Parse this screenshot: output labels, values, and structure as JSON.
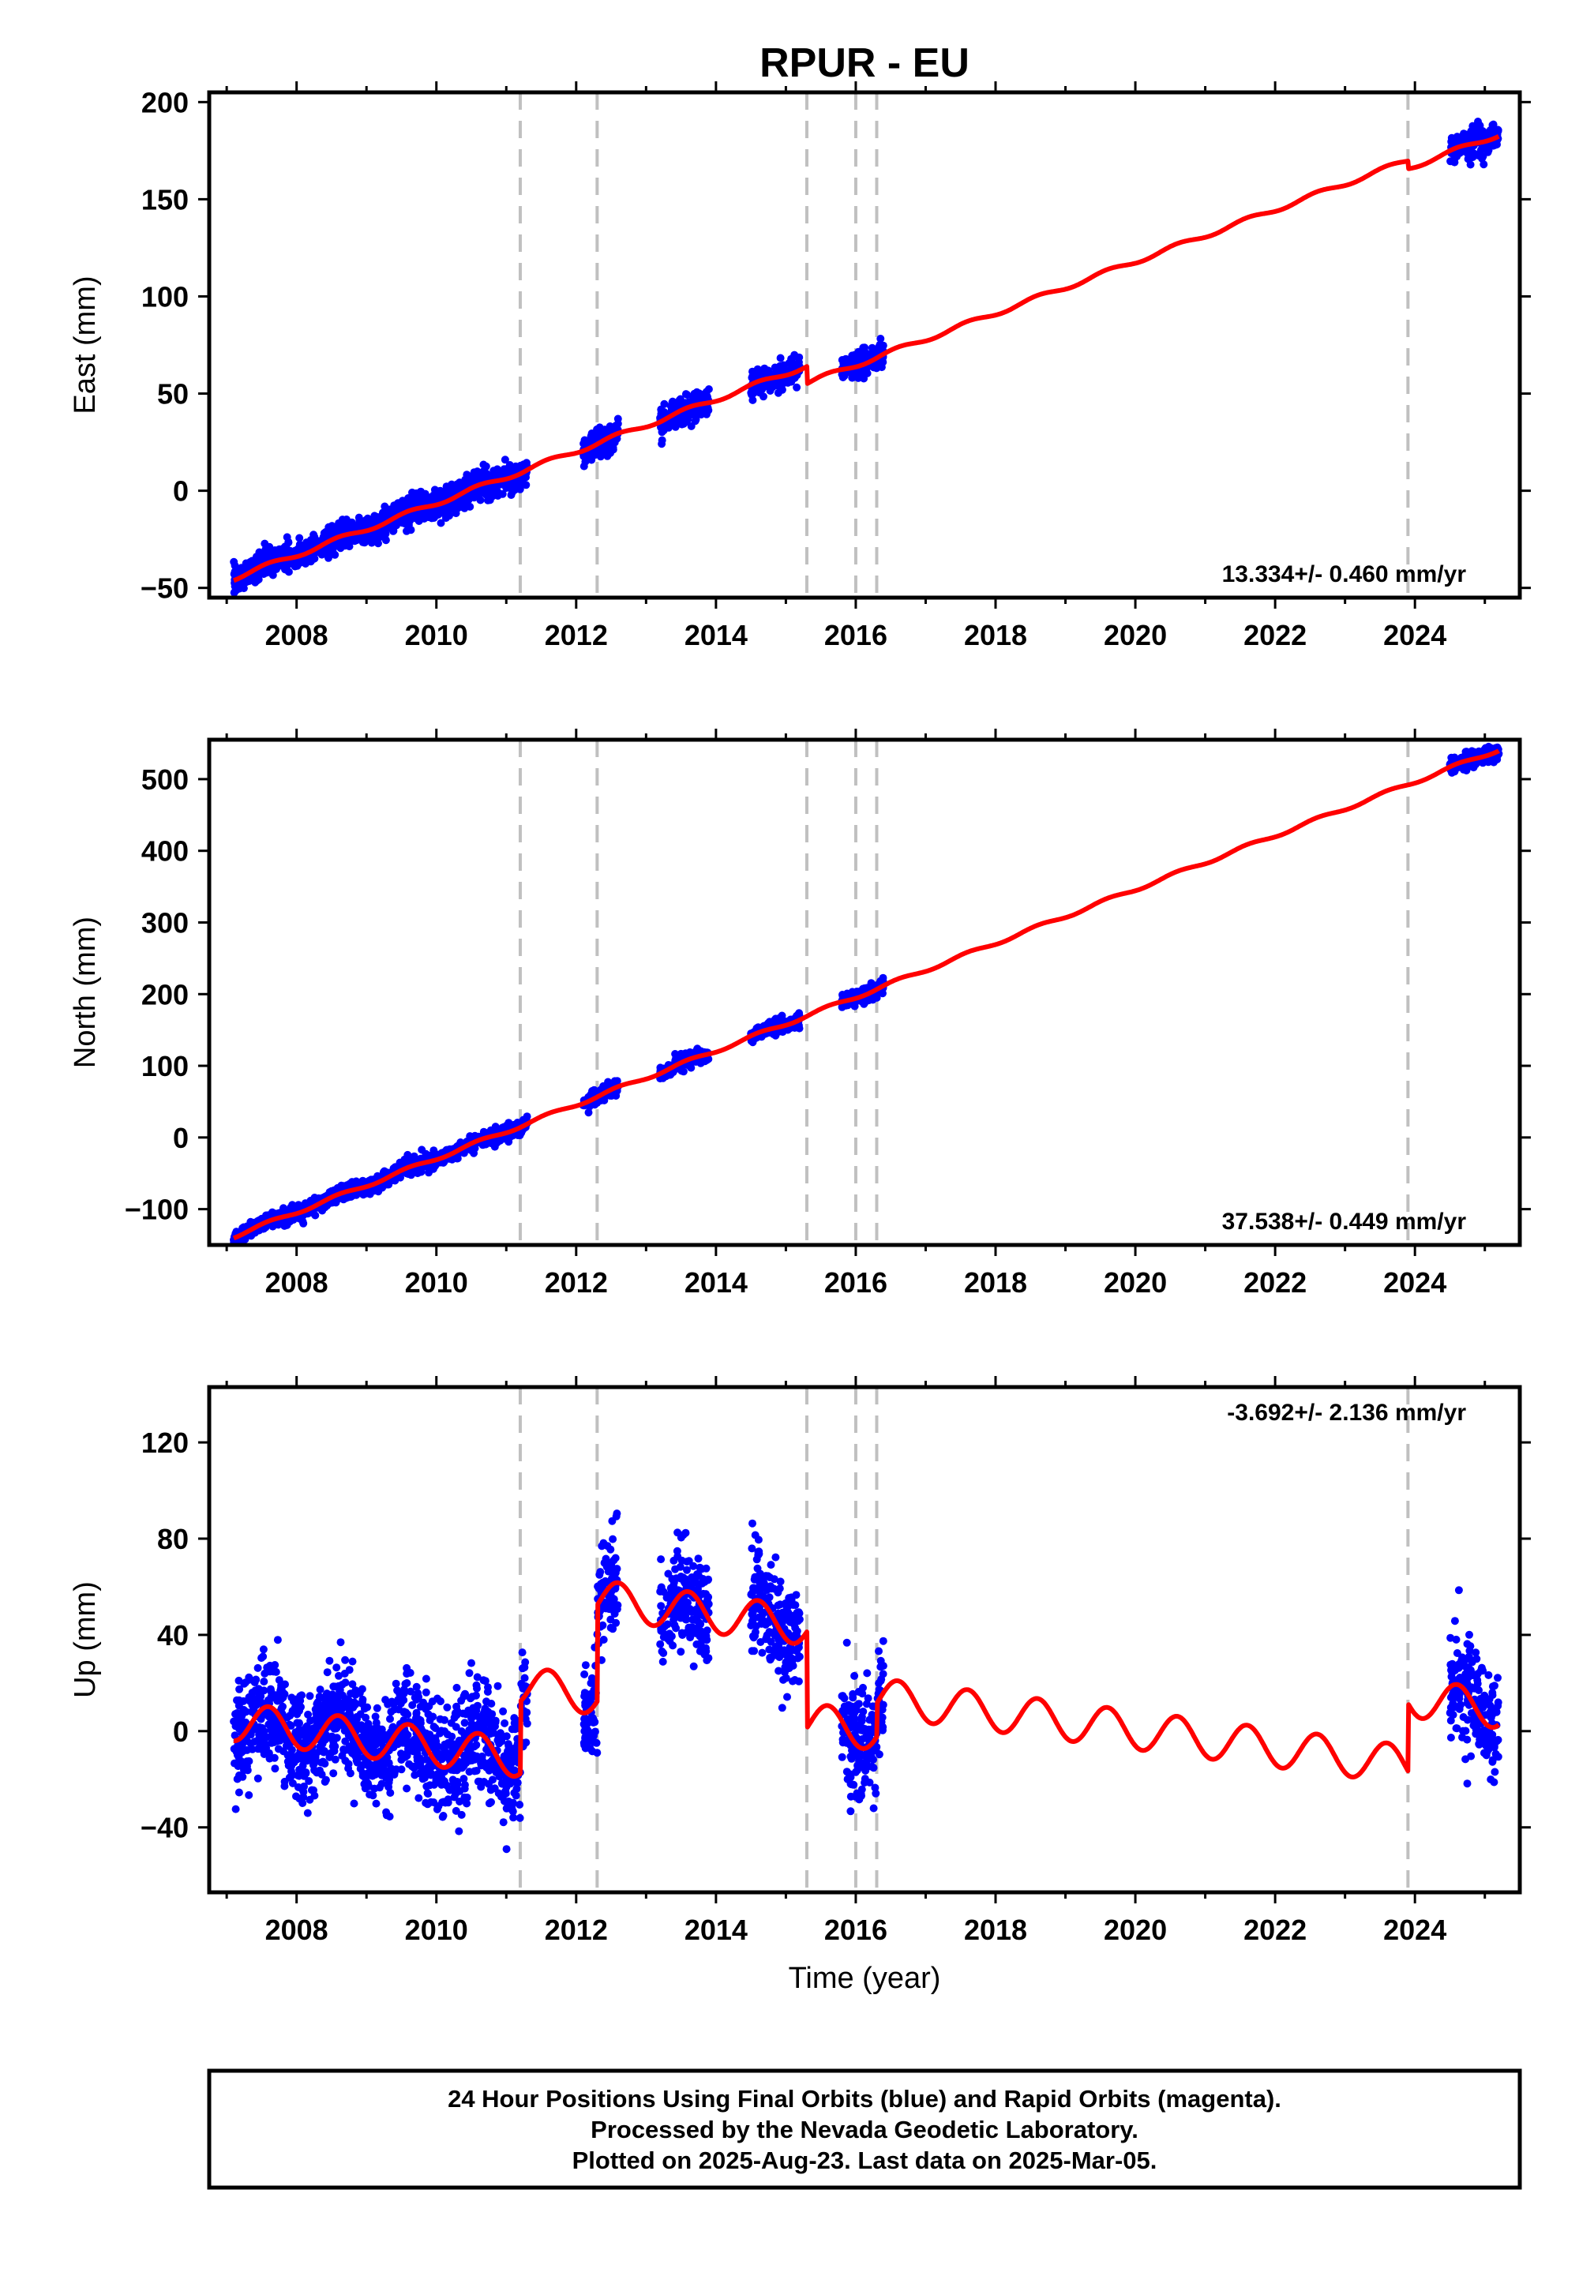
{
  "title": "RPUR - EU",
  "xlabel": "Time (year)",
  "x_ticks": [
    "2008",
    "2010",
    "2012",
    "2014",
    "2016",
    "2018",
    "2020",
    "2022",
    "2024"
  ],
  "footer": {
    "line1": "24 Hour Positions Using Final Orbits (blue) and Rapid Orbits (magenta).",
    "line2": "Processed by the Nevada Geodetic Laboratory.",
    "line3": "Plotted on 2025-Aug-23. Last data on 2025-Mar-05."
  },
  "colors": {
    "final_orbits": "#0000ff",
    "model_fit": "#ff0000",
    "event_lines": "#c0c0c0",
    "axes": "#000000"
  },
  "chart_data": [
    {
      "type": "scatter",
      "id": "east",
      "ylabel": "East (mm)",
      "rate": "13.334+/- 0.460 mm/yr",
      "rate_position": "bottom-right",
      "xlim": [
        2006.75,
        2025.5
      ],
      "ylim": [
        -55,
        205
      ],
      "y_ticks": [
        -50,
        0,
        50,
        100,
        150,
        200
      ],
      "y_tick_labels": [
        "−50",
        "0",
        "50",
        "100",
        "150",
        "200"
      ],
      "event_lines": [
        2011.2,
        2012.3,
        2015.3,
        2016.0,
        2016.3,
        2023.9
      ],
      "data_segments": [
        [
          2007.1,
          2011.3
        ],
        [
          2012.1,
          2012.6
        ],
        [
          2013.2,
          2013.9
        ],
        [
          2014.5,
          2015.2
        ],
        [
          2015.8,
          2016.4
        ],
        [
          2024.5,
          2025.2
        ]
      ],
      "trend": {
        "rate_mm_yr": 13.334,
        "ref_year": 2007.1,
        "ref_value": -45
      },
      "offsets": [
        {
          "year": 2015.3,
          "value": -9
        },
        {
          "year": 2023.9,
          "value": -4
        }
      ],
      "seasonal_amplitude": 1.2,
      "noise": 3.5,
      "series": [
        {
          "name": "Final Orbits",
          "kind": "points"
        },
        {
          "name": "Model",
          "kind": "line"
        }
      ]
    },
    {
      "type": "scatter",
      "id": "north",
      "ylabel": "North (mm)",
      "rate": "37.538+/- 0.449 mm/yr",
      "rate_position": "bottom-right",
      "xlim": [
        2006.75,
        2025.5
      ],
      "ylim": [
        -150,
        555
      ],
      "y_ticks": [
        -100,
        0,
        100,
        200,
        300,
        400,
        500
      ],
      "y_tick_labels": [
        "−100",
        "0",
        "100",
        "200",
        "300",
        "400",
        "500"
      ],
      "event_lines": [
        2011.2,
        2012.3,
        2015.3,
        2016.0,
        2016.3,
        2023.9
      ],
      "data_segments": [
        [
          2007.1,
          2011.3
        ],
        [
          2012.1,
          2012.6
        ],
        [
          2013.2,
          2013.9
        ],
        [
          2014.5,
          2015.2
        ],
        [
          2015.8,
          2016.4
        ],
        [
          2024.5,
          2025.2
        ]
      ],
      "trend": {
        "rate_mm_yr": 37.538,
        "ref_year": 2007.1,
        "ref_value": -138
      },
      "offsets": [],
      "seasonal_amplitude": 2.5,
      "noise": 5,
      "series": [
        {
          "name": "Final Orbits",
          "kind": "points"
        },
        {
          "name": "Model",
          "kind": "line"
        }
      ]
    },
    {
      "type": "scatter",
      "id": "up",
      "ylabel": "Up (mm)",
      "rate": "-3.692+/- 2.136 mm/yr",
      "rate_position": "top-right",
      "xlim": [
        2006.75,
        2025.5
      ],
      "ylim": [
        -67,
        143
      ],
      "y_ticks": [
        -40,
        0,
        40,
        80,
        120
      ],
      "y_tick_labels": [
        "−40",
        "0",
        "40",
        "80",
        "120"
      ],
      "event_lines": [
        2011.2,
        2012.3,
        2015.3,
        2016.0,
        2016.3,
        2023.9
      ],
      "data_segments": [
        [
          2007.1,
          2011.3
        ],
        [
          2012.1,
          2012.6
        ],
        [
          2013.2,
          2013.9
        ],
        [
          2014.5,
          2015.2
        ],
        [
          2015.8,
          2016.4
        ],
        [
          2024.5,
          2025.2
        ]
      ],
      "trend": {
        "rate_mm_yr": -3.692,
        "ref_year": 2007.1,
        "ref_value": 4
      },
      "offsets": [
        {
          "year": 2011.2,
          "value": 30
        },
        {
          "year": 2012.3,
          "value": 40
        },
        {
          "year": 2015.3,
          "value": -40
        },
        {
          "year": 2016.3,
          "value": 14
        },
        {
          "year": 2023.9,
          "value": 28
        }
      ],
      "seasonal_amplitude": 8,
      "noise": 11,
      "series": [
        {
          "name": "Final Orbits",
          "kind": "points"
        },
        {
          "name": "Model",
          "kind": "line"
        }
      ]
    }
  ]
}
